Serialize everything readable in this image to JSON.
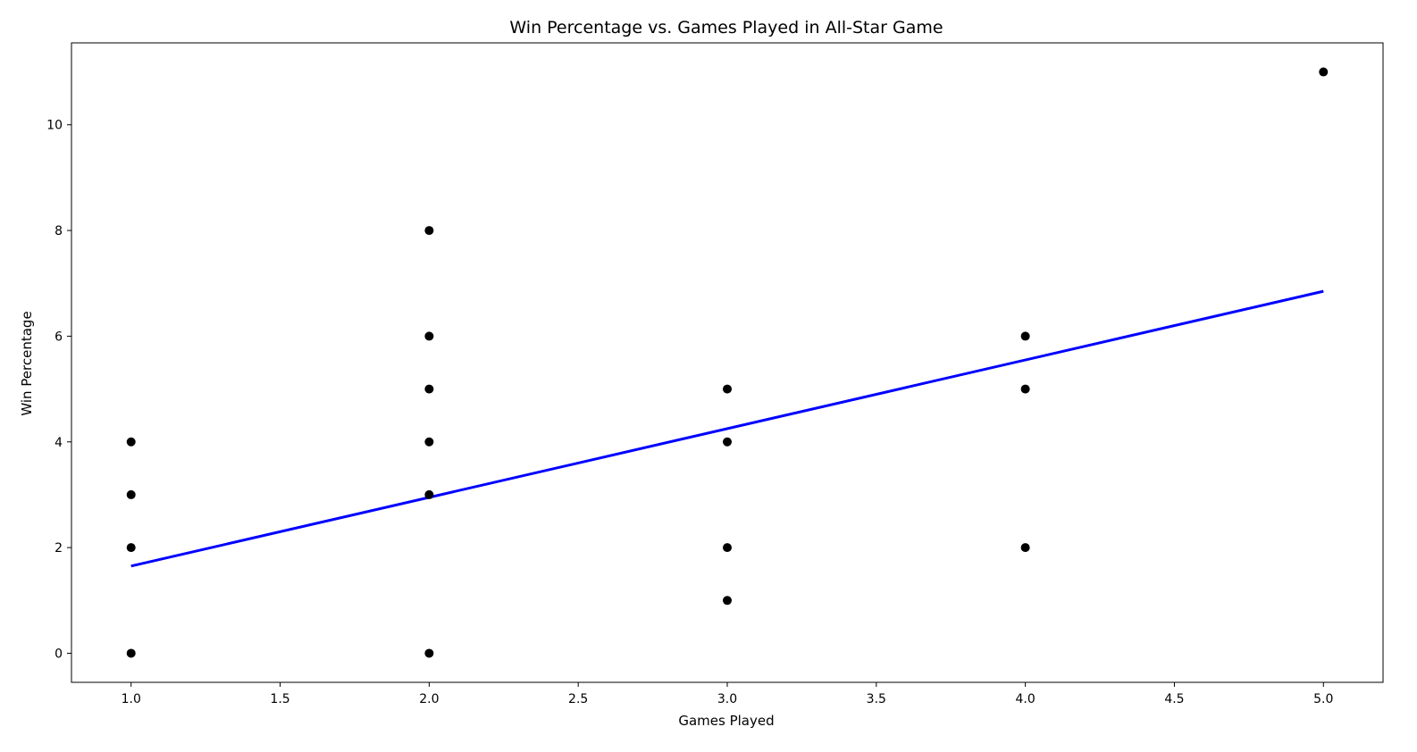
{
  "chart_data": {
    "type": "scatter",
    "title": "Win Percentage vs. Games Played in All-Star Game",
    "xlabel": "Games Played",
    "ylabel": "Win Percentage",
    "xlim": [
      0.8,
      5.2
    ],
    "ylim": [
      -0.55,
      11.55
    ],
    "xticks": [
      1.0,
      1.5,
      2.0,
      2.5,
      3.0,
      3.5,
      4.0,
      4.5,
      5.0
    ],
    "xtick_labels": [
      "1.0",
      "1.5",
      "2.0",
      "2.5",
      "3.0",
      "3.5",
      "4.0",
      "4.5",
      "5.0"
    ],
    "yticks": [
      0,
      2,
      4,
      6,
      8,
      10
    ],
    "ytick_labels": [
      "0",
      "2",
      "4",
      "6",
      "8",
      "10"
    ],
    "grid": false,
    "points": [
      {
        "x": 1,
        "y": 0
      },
      {
        "x": 1,
        "y": 2
      },
      {
        "x": 1,
        "y": 3
      },
      {
        "x": 1,
        "y": 4
      },
      {
        "x": 2,
        "y": 0
      },
      {
        "x": 2,
        "y": 3
      },
      {
        "x": 2,
        "y": 4
      },
      {
        "x": 2,
        "y": 5
      },
      {
        "x": 2,
        "y": 6
      },
      {
        "x": 2,
        "y": 8
      },
      {
        "x": 3,
        "y": 1
      },
      {
        "x": 3,
        "y": 2
      },
      {
        "x": 3,
        "y": 4
      },
      {
        "x": 3,
        "y": 5
      },
      {
        "x": 4,
        "y": 2
      },
      {
        "x": 4,
        "y": 5
      },
      {
        "x": 4,
        "y": 6
      },
      {
        "x": 5,
        "y": 11
      }
    ],
    "point_color": "#000000",
    "trend_line": {
      "x": [
        1,
        5
      ],
      "y": [
        1.65,
        6.85
      ]
    },
    "trend_color": "#0000ff"
  }
}
